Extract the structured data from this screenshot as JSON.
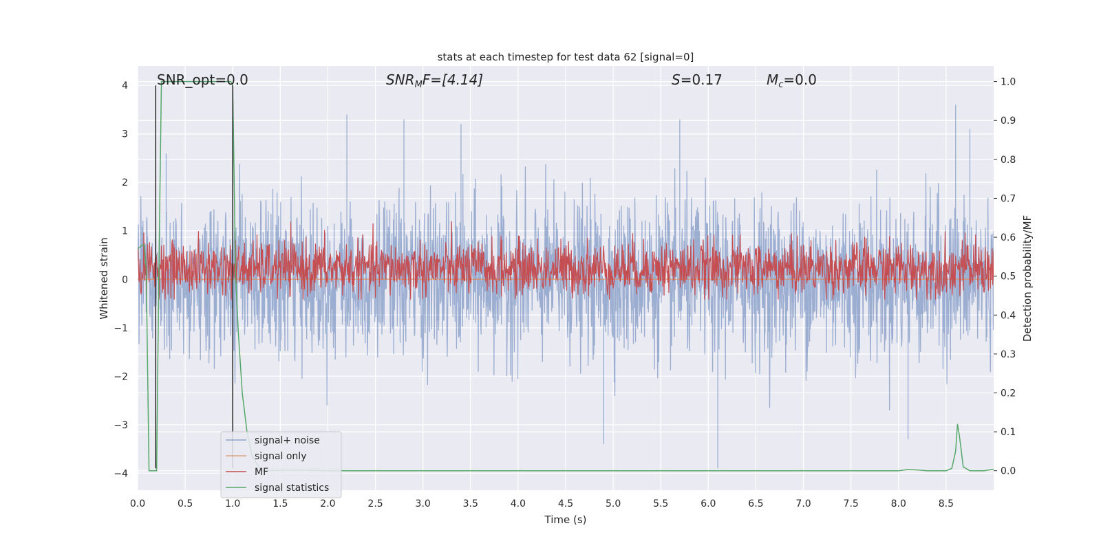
{
  "chart_data": {
    "type": "line",
    "title": "stats at each timestep for test data 62 [signal=0]",
    "xlabel": "Time (s)",
    "ylabel": "Whitened strain",
    "ylabel_right": "Detection probability/MF",
    "xlim": [
      0.0,
      9.0
    ],
    "ylim": [
      -4.35,
      4.4
    ],
    "ylim_right": [
      -0.05,
      1.04
    ],
    "x_ticks": [
      0.0,
      0.5,
      1.0,
      1.5,
      2.0,
      2.5,
      3.0,
      3.5,
      4.0,
      4.5,
      5.0,
      5.5,
      6.0,
      6.5,
      7.0,
      7.5,
      8.0,
      8.5
    ],
    "x_tick_labels": [
      "0.0",
      "0.5",
      "1.0",
      "1.5",
      "2.0",
      "2.5",
      "3.0",
      "3.5",
      "4.0",
      "4.5",
      "5.0",
      "5.5",
      "6.0",
      "6.5",
      "7.0",
      "7.5",
      "8.0",
      "8.5"
    ],
    "y_ticks": [
      -4,
      -3,
      -2,
      -1,
      0,
      1,
      2,
      3,
      4
    ],
    "y_tick_labels": [
      "−4",
      "−3",
      "−2",
      "−1",
      "0",
      "1",
      "2",
      "3",
      "4"
    ],
    "y_right_ticks": [
      0.0,
      0.1,
      0.2,
      0.3,
      0.4,
      0.5,
      0.6,
      0.7,
      0.8,
      0.9,
      1.0
    ],
    "y_right_tick_labels": [
      "0.0",
      "0.1",
      "0.2",
      "0.3",
      "0.4",
      "0.5",
      "0.6",
      "0.7",
      "0.8",
      "0.9",
      "1.0"
    ],
    "grid": true,
    "legend_position": "lower-left",
    "annotations": {
      "snr_opt": "SNR_opt=0.0",
      "snr_mf_main": "SNR",
      "snr_mf_sub": "M",
      "snr_mf_rest": "F=[4.14]",
      "s_italic": "S",
      "s_rest": "=0.17",
      "mc_main": "M",
      "mc_sub": "c",
      "mc_rest": "=0.0"
    },
    "series": [
      {
        "name": "signal+ noise",
        "color": "#4c72b0",
        "axis": "left",
        "style": "noise",
        "sigma": 0.8,
        "spikes": [
          [
            0.3,
            2.6
          ],
          [
            2.2,
            3.4
          ],
          [
            2.8,
            3.3
          ],
          [
            3.4,
            3.2
          ],
          [
            4.9,
            -3.4
          ],
          [
            5.7,
            3.3
          ],
          [
            6.1,
            -3.9
          ],
          [
            8.1,
            -3.3
          ],
          [
            8.6,
            3.6
          ],
          [
            8.75,
            3.1
          ]
        ]
      },
      {
        "name": "signal only",
        "color": "#dd8452",
        "axis": "left",
        "x": [
          0.0,
          9.0
        ],
        "y": [
          0.0,
          0.0
        ]
      },
      {
        "name": "MF",
        "color": "#c44e52",
        "axis": "right",
        "style": "noise",
        "mean": 0.52,
        "spread": 0.035
      },
      {
        "name": "signal statistics",
        "color": "#55a868",
        "axis": "right",
        "x": [
          0.0,
          0.05,
          0.07,
          0.09,
          0.12,
          0.2,
          0.22,
          0.25,
          0.98,
          1.0,
          1.03,
          1.06,
          1.1,
          1.15,
          1.2,
          1.3,
          1.7,
          2.0,
          4.0,
          6.0,
          8.0,
          8.1,
          8.2,
          8.3,
          8.5,
          8.56,
          8.6,
          8.62,
          8.64,
          8.68,
          8.75,
          8.9,
          9.0
        ],
        "y": [
          0.57,
          0.58,
          0.58,
          0.52,
          0.0,
          0.0,
          0.45,
          1.0,
          1.0,
          0.99,
          0.5,
          0.35,
          0.2,
          0.1,
          0.04,
          0.0,
          0.002,
          0.0,
          0.0,
          0.0,
          0.0,
          0.003,
          0.002,
          0.0,
          0.0,
          0.006,
          0.05,
          0.12,
          0.09,
          0.01,
          0.0,
          0.0,
          0.004
        ]
      },
      {
        "name": "",
        "color": "#333333",
        "axis": "left",
        "style": "vline",
        "x": [
          0.19,
          0.19
        ],
        "y": [
          -3.9,
          4.0
        ]
      },
      {
        "name": "",
        "color": "#333333",
        "axis": "left",
        "style": "vline",
        "x": [
          1.0,
          1.0
        ],
        "y": [
          -3.9,
          4.0
        ]
      }
    ]
  }
}
